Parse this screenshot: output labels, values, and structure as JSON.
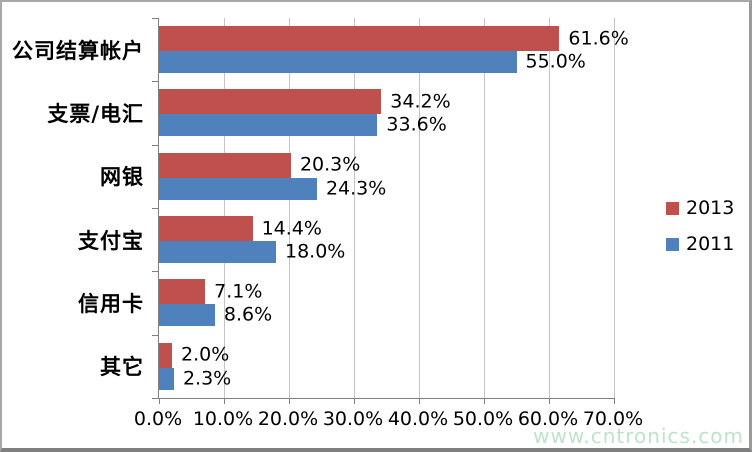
{
  "watermark": "www.cntronics.com",
  "colors": {
    "series_2013": "#C0504D",
    "series_2011": "#4F81BD",
    "gridline": "#C5C5C5",
    "axis": "#808080",
    "watermark": "#BEE3C9"
  },
  "chart_data": {
    "type": "bar",
    "orientation": "horizontal",
    "title": "",
    "categories": [
      "公司结算帐户",
      "支票/电汇",
      "网银",
      "支付宝",
      "信用卡",
      "其它"
    ],
    "series": [
      {
        "name": "2013",
        "color": "#C0504D",
        "values": [
          61.6,
          34.2,
          20.3,
          14.4,
          7.1,
          2.0
        ],
        "labels": [
          "61.6%",
          "34.2%",
          "20.3%",
          "14.4%",
          "7.1%",
          "2.0%"
        ]
      },
      {
        "name": "2011",
        "color": "#4F81BD",
        "values": [
          55.0,
          33.6,
          24.3,
          18.0,
          8.6,
          2.3
        ],
        "labels": [
          "55.0%",
          "33.6%",
          "24.3%",
          "18.0%",
          "8.6%",
          "2.3%"
        ]
      }
    ],
    "x_axis": {
      "min": 0,
      "max": 70,
      "tick_step": 10,
      "ticks": [
        "0.0%",
        "10.0%",
        "20.0%",
        "30.0%",
        "40.0%",
        "50.0%",
        "60.0%",
        "70.0%"
      ]
    },
    "grid": true,
    "legend_position": "right",
    "legend": [
      "2013",
      "2011"
    ]
  }
}
